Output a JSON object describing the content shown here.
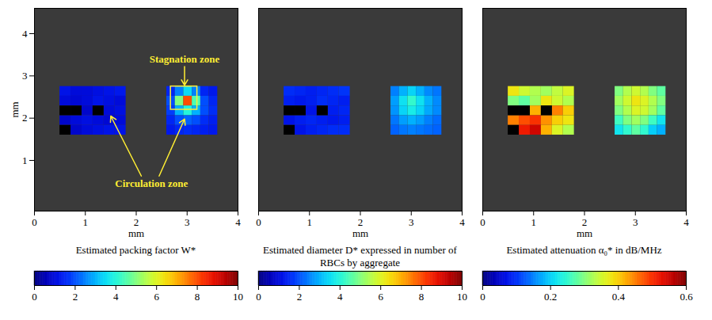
{
  "chart_data": [
    {
      "type": "heatmap",
      "xlabel": "mm",
      "ylabel": "mm",
      "xlim": [
        0,
        4
      ],
      "xticks": [
        0,
        1,
        2,
        3,
        4
      ],
      "ylim": [
        -0.2,
        4.6
      ],
      "yticks": [
        1,
        2,
        3,
        4
      ],
      "regions": [
        {
          "x": [
            0.5,
            1.8
          ],
          "y": [
            1.6,
            2.75
          ],
          "cells": [
            [
              1.2,
              1.0,
              1.0,
              1.1,
              1.2,
              1.3
            ],
            [
              1.0,
              0.9,
              1.0,
              1.2,
              1.1,
              1.0
            ],
            [
              null,
              null,
              0.8,
              null,
              1.0,
              1.1
            ],
            [
              0.8,
              1.0,
              1.1,
              1.0,
              0.9,
              1.0
            ],
            [
              null,
              0.8,
              1.0,
              1.1,
              1.2,
              1.2
            ]
          ]
        },
        {
          "x": [
            2.6,
            3.6
          ],
          "y": [
            1.6,
            2.75
          ],
          "cells": [
            [
              1.5,
              2.5,
              3.5,
              2.5,
              1.5,
              1.3
            ],
            [
              2.0,
              5.0,
              8.0,
              4.5,
              2.0,
              1.5
            ],
            [
              1.8,
              3.0,
              4.0,
              3.0,
              2.0,
              1.6
            ],
            [
              1.5,
              2.0,
              2.2,
              2.0,
              1.6,
              1.4
            ],
            [
              1.3,
              1.5,
              1.6,
              1.5,
              1.4,
              1.3
            ]
          ]
        }
      ],
      "highlight": {
        "x": [
          2.68,
          3.2
        ],
        "y": [
          2.2,
          2.75
        ]
      },
      "annotations": [
        {
          "text": "Stagnation zone",
          "x": 2.95,
          "y": 3.4,
          "arrows": [
            {
              "from": [
                2.95,
                3.22
              ],
              "to": [
                2.95,
                2.78
              ]
            }
          ]
        },
        {
          "text": "Circulation zone",
          "x": 2.3,
          "y": 0.45,
          "arrows": [
            {
              "from": [
                2.1,
                0.63
              ],
              "to": [
                1.5,
                2.05
              ]
            },
            {
              "from": [
                2.45,
                0.63
              ],
              "to": [
                2.95,
                1.98
              ]
            }
          ]
        }
      ],
      "colorbar": {
        "label": "Estimated packing factor W*",
        "range": [
          0,
          10
        ],
        "ticks": [
          0,
          2,
          4,
          6,
          8,
          10
        ]
      }
    },
    {
      "type": "heatmap",
      "xlabel": "mm",
      "xlim": [
        0,
        4
      ],
      "xticks": [
        0,
        1,
        2,
        3,
        4
      ],
      "ylim": [
        -0.2,
        4.6
      ],
      "tick_labels": "x",
      "regions": [
        {
          "x": [
            0.5,
            1.8
          ],
          "y": [
            1.6,
            2.75
          ],
          "cells": [
            [
              1.6,
              1.5,
              1.4,
              1.5,
              1.6,
              1.7
            ],
            [
              1.4,
              1.3,
              1.4,
              1.6,
              1.5,
              1.4
            ],
            [
              null,
              null,
              1.2,
              null,
              1.4,
              1.5
            ],
            [
              1.2,
              1.4,
              1.5,
              1.4,
              1.3,
              1.4
            ],
            [
              null,
              1.2,
              1.4,
              1.5,
              1.6,
              1.6
            ]
          ]
        },
        {
          "x": [
            2.6,
            3.6
          ],
          "y": [
            1.6,
            2.75
          ],
          "cells": [
            [
              2.5,
              3.0,
              3.4,
              3.0,
              2.6,
              2.4
            ],
            [
              2.8,
              3.6,
              4.2,
              3.6,
              3.0,
              2.6
            ],
            [
              2.7,
              3.4,
              3.8,
              3.4,
              2.9,
              2.6
            ],
            [
              2.4,
              2.8,
              3.0,
              2.8,
              2.5,
              2.3
            ],
            [
              2.2,
              2.4,
              2.5,
              2.4,
              2.3,
              2.2
            ]
          ]
        }
      ],
      "colorbar": {
        "label": "Estimated diameter D* expressed in number of RBCs by aggregate",
        "range": [
          0,
          10
        ],
        "ticks": [
          0,
          2,
          4,
          6,
          8,
          10
        ]
      }
    },
    {
      "type": "heatmap",
      "xlabel": "mm",
      "xlim": [
        0,
        4
      ],
      "xticks": [
        0,
        1,
        2,
        3,
        4
      ],
      "ylim": [
        -0.2,
        4.6
      ],
      "tick_labels": "x",
      "regions": [
        {
          "x": [
            0.5,
            1.8
          ],
          "y": [
            1.6,
            2.75
          ],
          "cells": [
            [
              0.38,
              0.35,
              0.33,
              0.32,
              0.34,
              0.36
            ],
            [
              0.3,
              0.28,
              0.32,
              0.38,
              0.35,
              0.33
            ],
            [
              null,
              null,
              0.42,
              null,
              0.45,
              0.4
            ],
            [
              0.45,
              0.48,
              0.5,
              0.44,
              0.4,
              0.38
            ],
            [
              null,
              0.52,
              0.55,
              0.42,
              0.36,
              0.33
            ]
          ]
        },
        {
          "x": [
            2.6,
            3.6
          ],
          "y": [
            1.6,
            2.75
          ],
          "cells": [
            [
              0.3,
              0.33,
              0.35,
              0.33,
              0.3,
              0.28
            ],
            [
              0.32,
              0.35,
              0.38,
              0.36,
              0.33,
              0.3
            ],
            [
              0.3,
              0.33,
              0.36,
              0.35,
              0.32,
              0.28
            ],
            [
              0.26,
              0.3,
              0.32,
              0.3,
              0.26,
              0.22
            ],
            [
              0.22,
              0.25,
              0.28,
              0.25,
              0.2,
              0.18
            ]
          ]
        }
      ],
      "colorbar": {
        "label": "Estimated attenuation α₀* in dB/MHz",
        "range": [
          0,
          0.6
        ],
        "ticks": [
          0,
          0.2,
          0.4,
          0.6
        ]
      }
    }
  ]
}
